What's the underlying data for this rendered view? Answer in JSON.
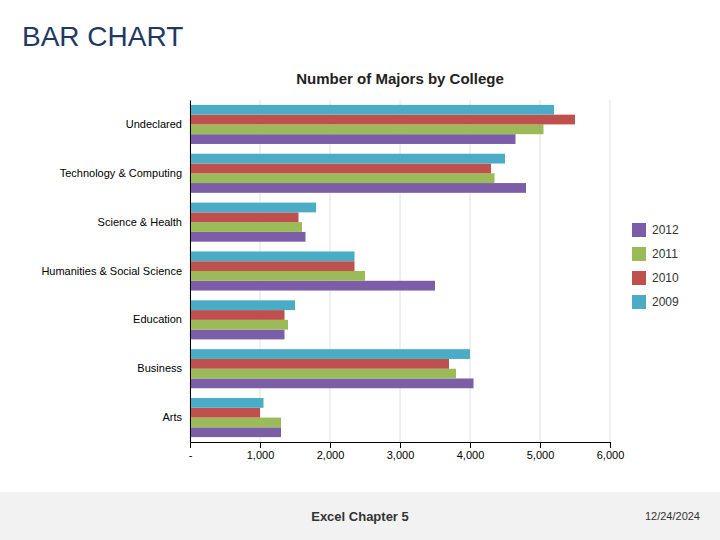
{
  "chart_data": {
    "type": "bar",
    "orientation": "horizontal",
    "title": "Number of Majors by College",
    "annotations": [
      "BAR CHART",
      "Excel Chapter 5",
      "12/24/2024"
    ],
    "categories": [
      "Arts",
      "Business",
      "Education",
      "Humanities & Social Science",
      "Science & Health",
      "Technology & Computing",
      "Undeclared"
    ],
    "series": [
      {
        "name": "2012",
        "color": "#7B5EA7",
        "values": [
          1300,
          4050,
          1350,
          3500,
          1650,
          4800,
          4650
        ]
      },
      {
        "name": "2011",
        "color": "#9BBB59",
        "values": [
          1300,
          3800,
          1400,
          2500,
          1600,
          4350,
          5050
        ]
      },
      {
        "name": "2010",
        "color": "#C0504D",
        "values": [
          1000,
          3700,
          1350,
          2350,
          1550,
          4300,
          5500
        ]
      },
      {
        "name": "2009",
        "color": "#4BACC6",
        "values": [
          1050,
          4000,
          1500,
          2350,
          1800,
          4500,
          5200
        ]
      }
    ],
    "xlim": [
      0,
      6000
    ],
    "xticks": [
      {
        "value": 0,
        "label": "-"
      },
      {
        "value": 1000,
        "label": "1,000"
      },
      {
        "value": 2000,
        "label": "2,000"
      },
      {
        "value": 3000,
        "label": "3,000"
      },
      {
        "value": 4000,
        "label": "4,000"
      },
      {
        "value": 5000,
        "label": "5,000"
      },
      {
        "value": 6000,
        "label": "6,000"
      }
    ],
    "grid": true,
    "legend": "right"
  }
}
